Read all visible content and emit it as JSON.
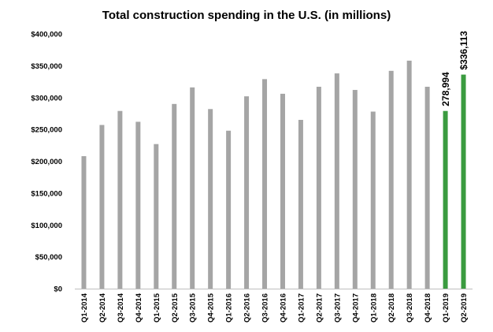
{
  "chart_data": {
    "type": "bar",
    "title": "Total construction spending in the U.S. (in millions)",
    "xlabel": "",
    "ylabel": "",
    "ylim": [
      0,
      400000
    ],
    "yticks": [
      0,
      50000,
      100000,
      150000,
      200000,
      250000,
      300000,
      350000,
      400000
    ],
    "ytick_labels": [
      "$0",
      "$50,000",
      "$100,000",
      "$150,000",
      "$200,000",
      "$250,000",
      "$300,000",
      "$350,000",
      "$400,000"
    ],
    "grid": false,
    "categories": [
      "Q1-2014",
      "Q2-2014",
      "Q3-2014",
      "Q4-2014",
      "Q1-2015",
      "Q2-2015",
      "Q3-2015",
      "Q4-2015",
      "Q1-2016",
      "Q2-2016",
      "Q3-2016",
      "Q4-2016",
      "Q1-2017",
      "Q2-2017",
      "Q3-2017",
      "Q4-2017",
      "Q1-2018",
      "Q2-2018",
      "Q3-2018",
      "Q4-2018",
      "Q1-2019",
      "Q2-2019"
    ],
    "values": [
      208000,
      257000,
      279000,
      262000,
      227000,
      290000,
      316000,
      282000,
      248000,
      302000,
      329000,
      306000,
      265000,
      317000,
      338000,
      312000,
      278000,
      342000,
      358000,
      317000,
      278994,
      336113
    ],
    "colors": [
      "#a5a5a5",
      "#a5a5a5",
      "#a5a5a5",
      "#a5a5a5",
      "#a5a5a5",
      "#a5a5a5",
      "#a5a5a5",
      "#a5a5a5",
      "#a5a5a5",
      "#a5a5a5",
      "#a5a5a5",
      "#a5a5a5",
      "#a5a5a5",
      "#a5a5a5",
      "#a5a5a5",
      "#a5a5a5",
      "#a5a5a5",
      "#a5a5a5",
      "#a5a5a5",
      "#a5a5a5",
      "#3a9b3f",
      "#3a9b3f"
    ],
    "data_labels": [
      {
        "index": 20,
        "text": "278,994"
      },
      {
        "index": 21,
        "text": "$336,113"
      }
    ]
  }
}
